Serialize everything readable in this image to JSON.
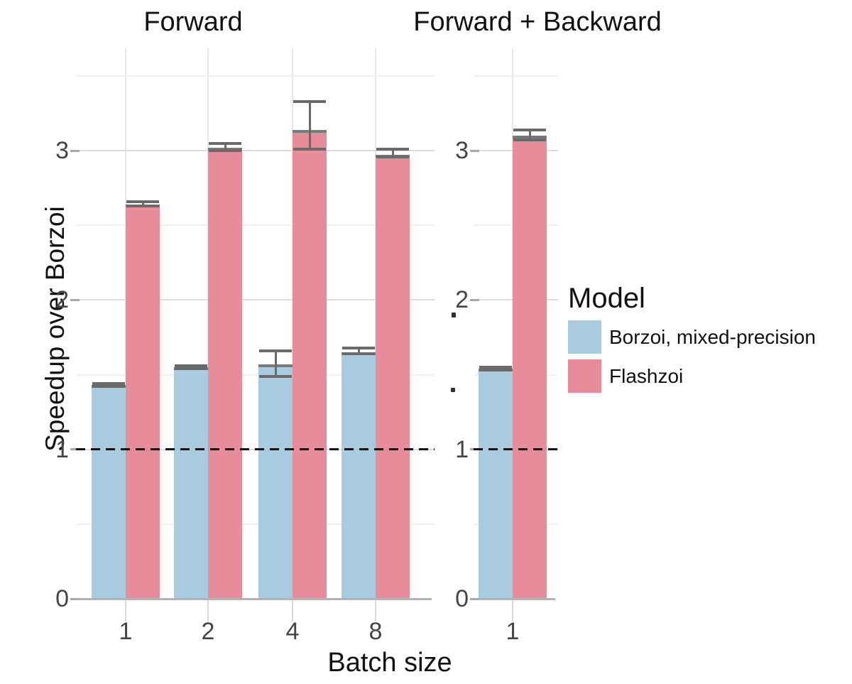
{
  "chart_data": {
    "type": "bar",
    "figure_kind": "grouped bar chart with error bars, two facets",
    "ylabel": "Speedup over Borzoi",
    "xlabel": "Batch size",
    "ylim": [
      0,
      3.68
    ],
    "yticks": [
      "0",
      "1",
      "2",
      "3"
    ],
    "ytick_values": [
      0,
      1,
      2,
      3
    ],
    "minor_gridline_values": [
      0.5,
      1.5,
      2.5,
      3.5
    ],
    "major_gridline_values": [
      1,
      2,
      3
    ],
    "grid": "on",
    "reference_line": {
      "value": 1,
      "style": "dashed",
      "color": "#111111"
    },
    "legend": {
      "title": "Model",
      "position": "right",
      "items": [
        {
          "label": "Borzoi, mixed-precision",
          "color": "#a8cbe0"
        },
        {
          "label": "Flashzoi",
          "color": "#e78c9b"
        }
      ]
    },
    "panels": [
      {
        "title": "Forward",
        "categories": [
          "1",
          "2",
          "4",
          "8"
        ],
        "series": [
          {
            "name": "Borzoi, mixed-precision",
            "color": "#a8cbe0",
            "values": [
              1.43,
              1.55,
              1.57,
              1.65
            ],
            "errors": [
              [
                1.42,
                1.44
              ],
              [
                1.54,
                1.56
              ],
              [
                1.49,
                1.66
              ],
              [
                1.64,
                1.68
              ]
            ]
          },
          {
            "name": "Flashzoi",
            "color": "#e78c9b",
            "values": [
              2.64,
              3.02,
              3.14,
              2.97
            ],
            "errors": [
              [
                2.63,
                2.66
              ],
              [
                3.0,
                3.05
              ],
              [
                3.01,
                3.33
              ],
              [
                2.96,
                3.01
              ]
            ]
          }
        ]
      },
      {
        "title": "Forward + Backward",
        "categories": [
          "1"
        ],
        "series": [
          {
            "name": "Borzoi, mixed-precision",
            "color": "#a8cbe0",
            "values": [
              1.54
            ],
            "errors": [
              [
                1.53,
                1.55
              ]
            ]
          },
          {
            "name": "Flashzoi",
            "color": "#e78c9b",
            "values": [
              3.1
            ],
            "errors": [
              [
                3.07,
                3.14
              ]
            ]
          }
        ]
      }
    ]
  }
}
